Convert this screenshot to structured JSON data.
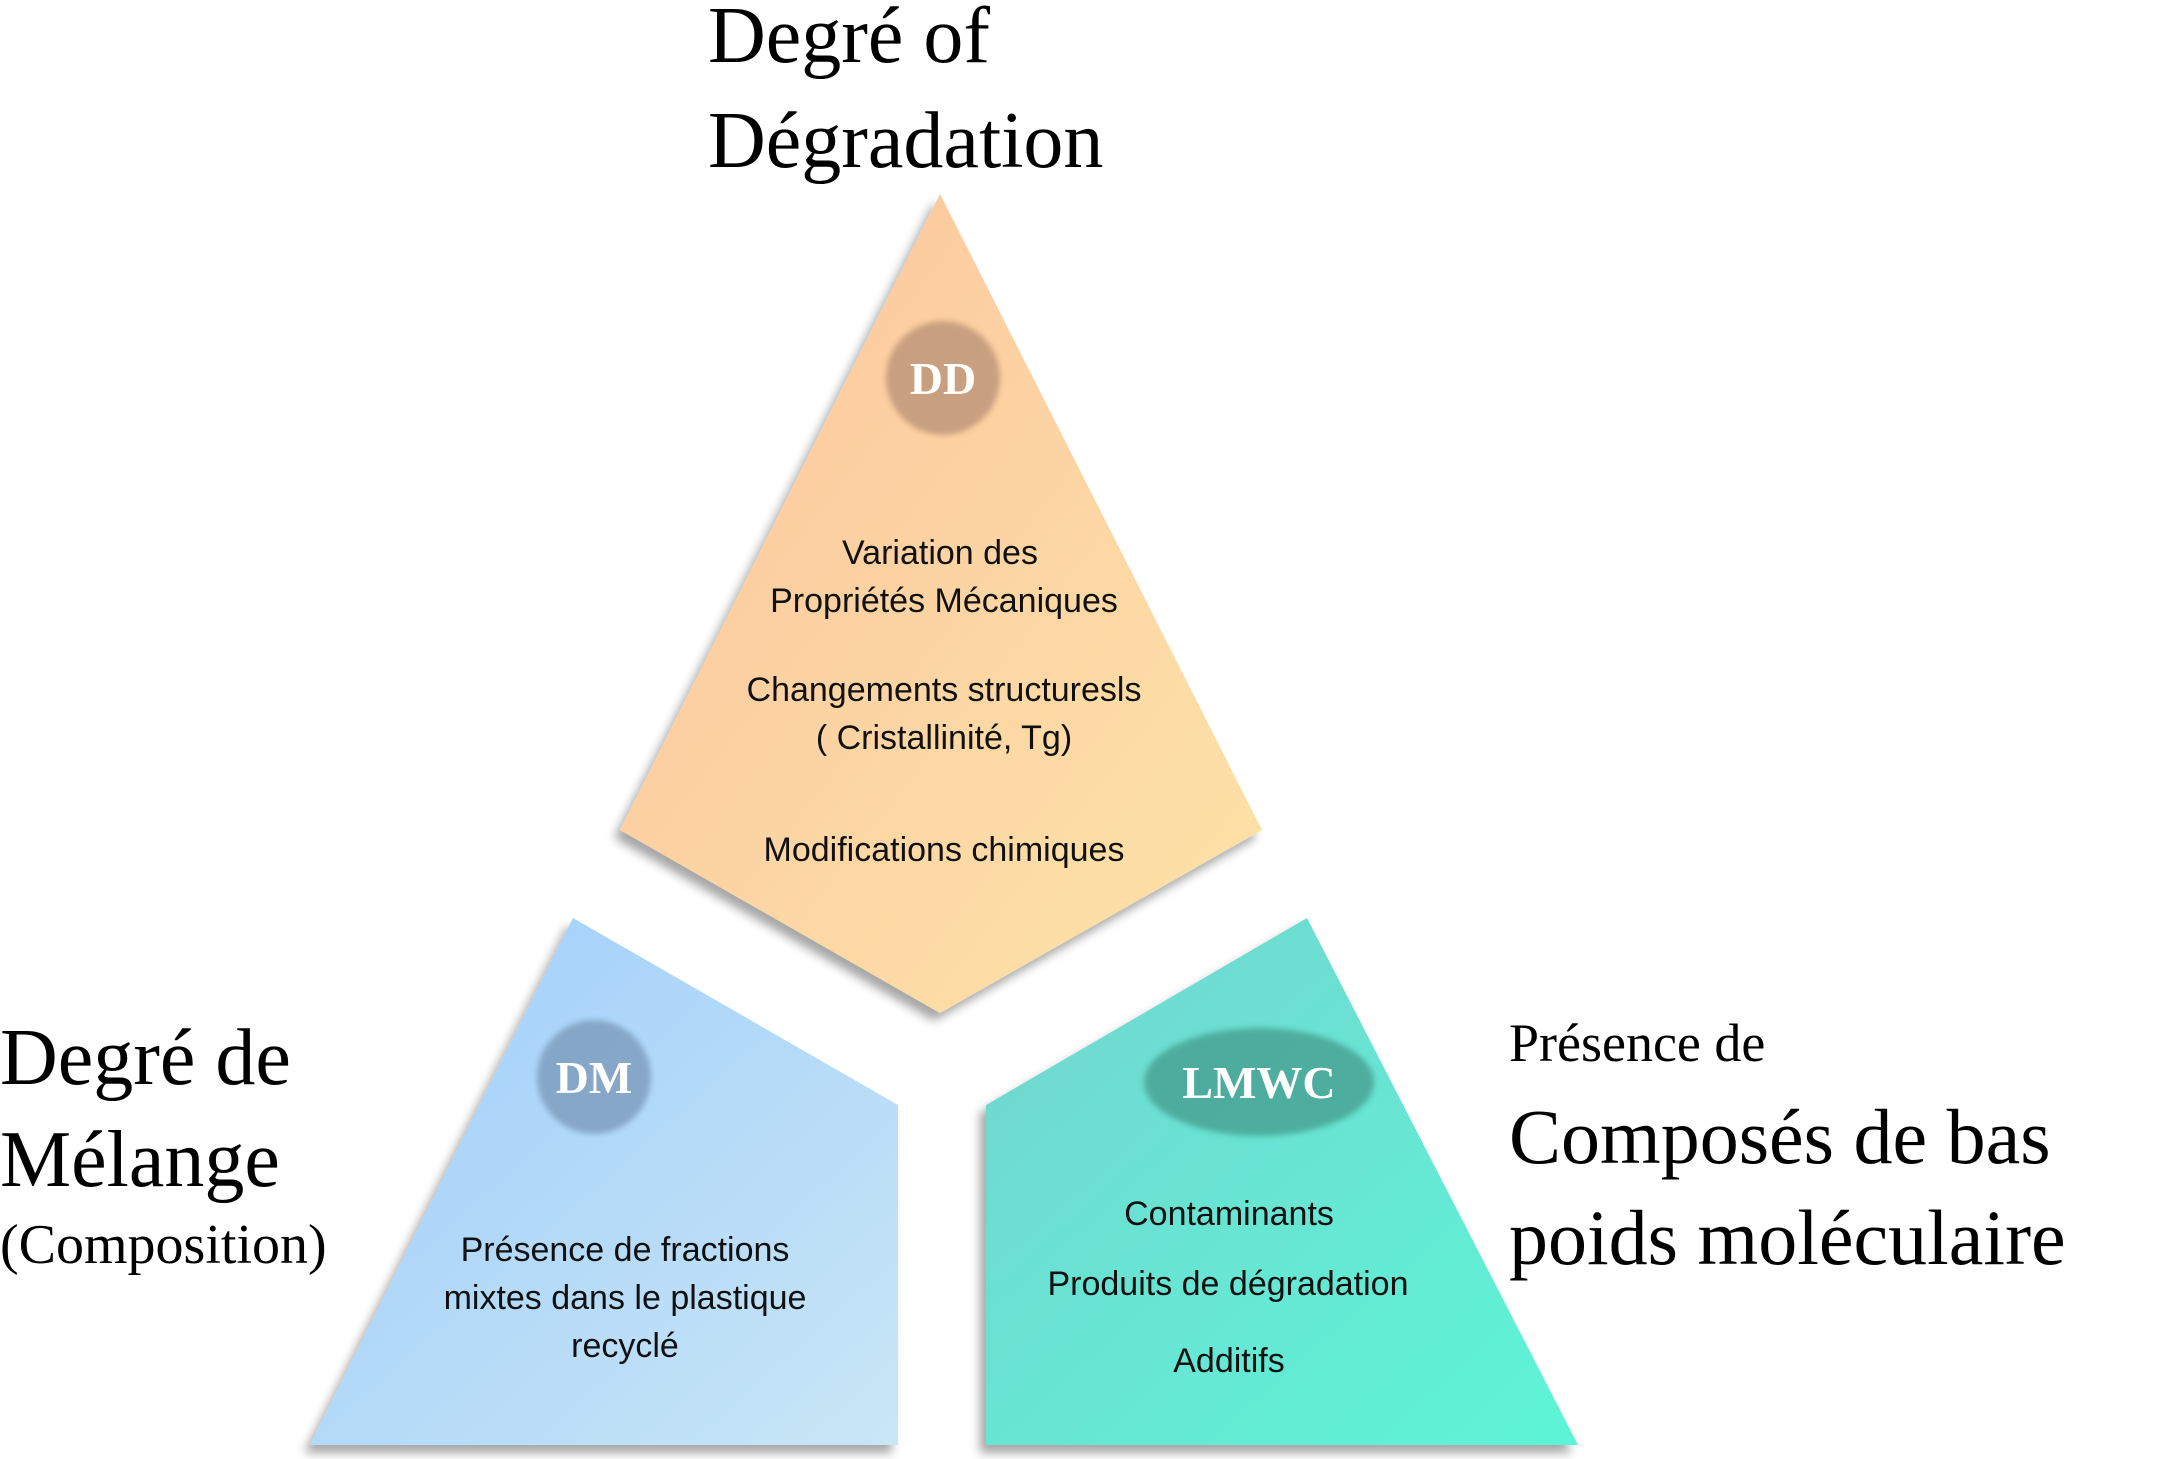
{
  "top_title": {
    "line1": "Degré of",
    "line2": "Dégradation"
  },
  "left_title": {
    "line1": "Degré de",
    "line2": "Mélange",
    "line3": "(Composition)"
  },
  "right_title": {
    "line1": "Présence de",
    "line2": "Composés de bas",
    "line3": "poids moléculaire"
  },
  "top_section": {
    "badge": "DD",
    "items": [
      "Variation des",
      "Propriétés Mécaniques",
      "Changements structuresls",
      "( Cristallinité, Tg)",
      "Modifications chimiques"
    ]
  },
  "left_section": {
    "badge": "DM",
    "items": [
      "Présence de fractions",
      "mixtes dans le plastique",
      "recyclé"
    ]
  },
  "right_section": {
    "badge": "LMWC",
    "items": [
      "Contaminants",
      "Produits de dégradation",
      "Additifs"
    ]
  },
  "colors": {
    "top_fill_start": "#fcc49e",
    "top_fill_end": "#fde4a8",
    "left_fill_start": "#9fcdfb",
    "left_fill_end": "#c8e6f6",
    "right_fill_start": "#72d8cf",
    "right_fill_end": "#5cf4d7",
    "badge_top": "#c0977a",
    "badge_left": "#7f9fbf",
    "badge_right": "#4aa495"
  }
}
